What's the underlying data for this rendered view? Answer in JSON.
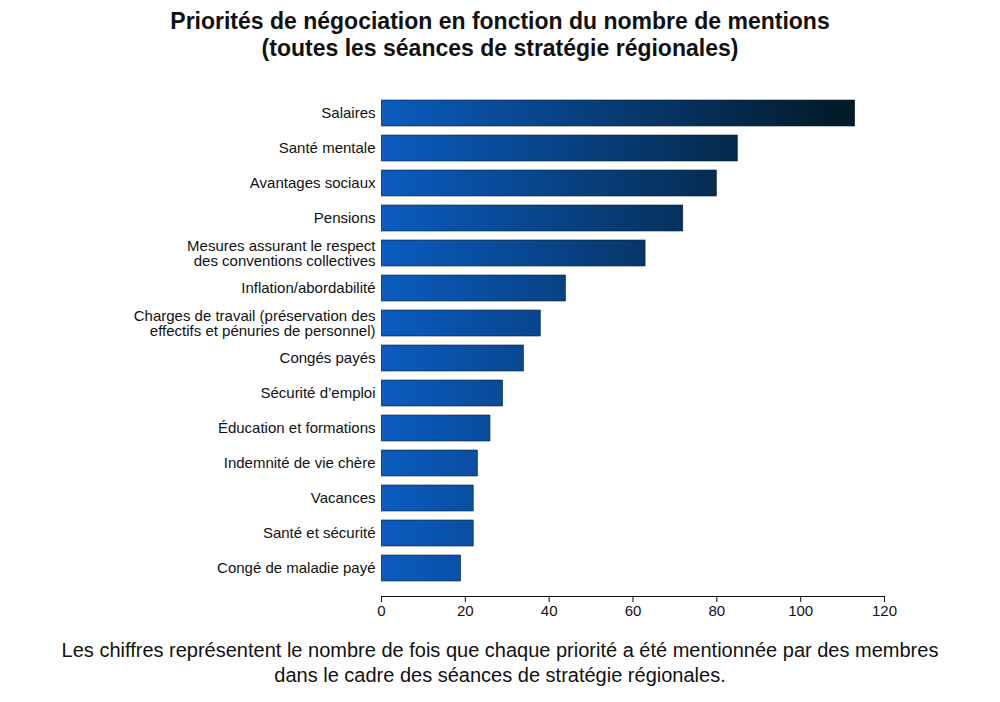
{
  "chart_data": {
    "type": "bar",
    "orientation": "horizontal",
    "title": "Priorités de négociation en fonction du nombre de mentions",
    "subtitle": "(toutes les séances de stratégie régionales)",
    "caption": "Les chiffres représentent le nombre de fois que chaque priorité a été mentionnée par des membres dans le cadre des séances de stratégie régionales.",
    "categories": [
      "Salaires",
      "Santé mentale",
      "Avantages sociaux",
      "Pensions",
      "Mesures assurant le respect\ndes conventions collectives",
      "Inflation/abordabilité",
      "Charges de travail (préservation des\neffectifs et pénuries de personnel)",
      "Congés payés",
      "Sécurité d’emploi",
      "Éducation et formations",
      "Indemnité de vie chère",
      "Vacances",
      "Santé et sécurité",
      "Congé de maladie payé"
    ],
    "values": [
      113,
      85,
      80,
      72,
      63,
      44,
      38,
      34,
      29,
      26,
      23,
      22,
      22,
      19
    ],
    "color": "#0b5cc0",
    "xlim": [
      0,
      120
    ],
    "xticks": [
      0,
      20,
      40,
      60,
      80,
      100,
      120
    ],
    "grid": false
  }
}
